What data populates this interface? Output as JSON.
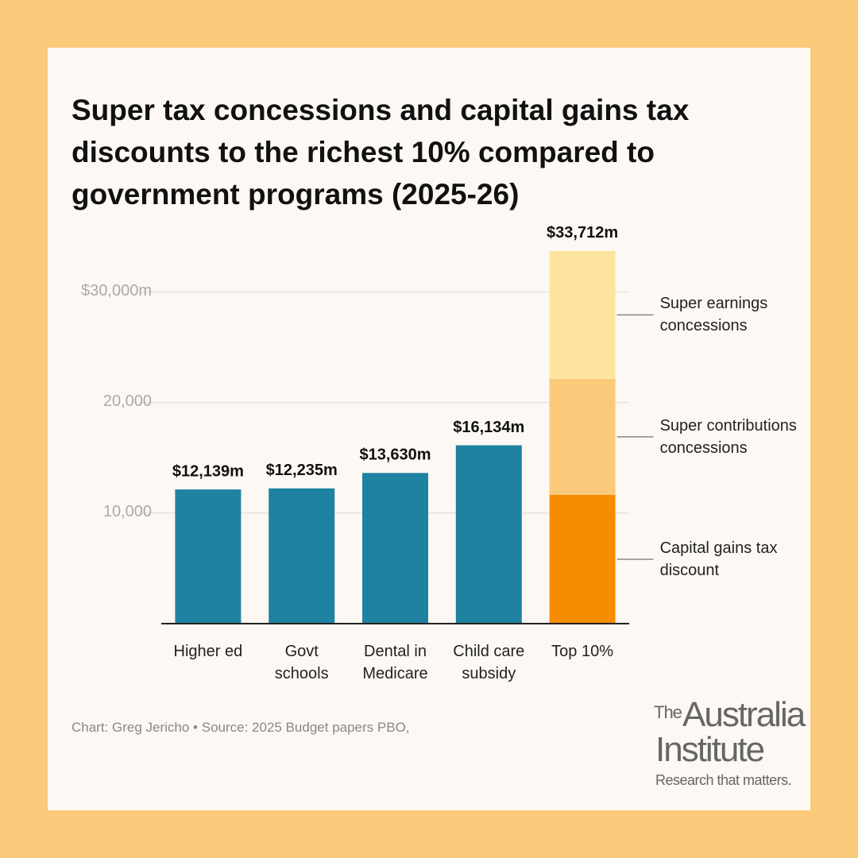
{
  "chart_data": {
    "type": "bar",
    "title": "Super tax concessions and capital gains tax discounts to the richest 10% compared to government programs (2025-26)",
    "categories": [
      "Higher ed",
      "Govt schools",
      "Dental in Medicare",
      "Child care subsidy",
      "Top 10%"
    ],
    "values": [
      12139,
      12235,
      13630,
      16134,
      33712
    ],
    "value_labels": [
      "$12,139m",
      "$12,235m",
      "$13,630m",
      "$16,134m",
      "$33,712m"
    ],
    "color": "#1f82a0",
    "series": [
      {
        "name": "Capital gains tax discount",
        "color": "#f78c00",
        "values": [
          null,
          null,
          null,
          null,
          11650
        ]
      },
      {
        "name": "Super contributions concessions",
        "color": "#fbc97a",
        "values": [
          null,
          null,
          null,
          null,
          10500
        ]
      },
      {
        "name": "Super earnings concessions",
        "color": "#fde49e",
        "values": [
          null,
          null,
          null,
          null,
          11562
        ]
      }
    ],
    "ylim": [
      0,
      35000
    ],
    "yticks": [
      {
        "value": 10000,
        "label": "10,000"
      },
      {
        "value": 20000,
        "label": "20,000"
      },
      {
        "value": 30000,
        "label": "$30,000m"
      }
    ],
    "grid": true,
    "source": "Chart: Greg Jericho • Source: 2025 Budget papers PBO,"
  },
  "logo": {
    "prefix": "The",
    "line1": "Australia",
    "line2": "Institute",
    "tagline": "Research that matters."
  }
}
